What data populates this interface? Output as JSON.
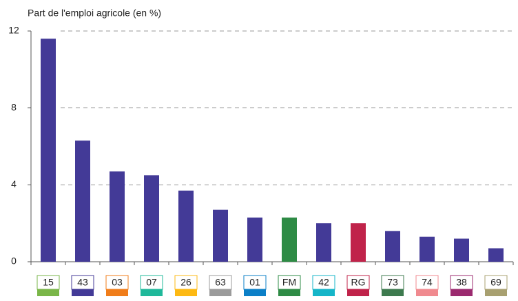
{
  "chart_data": {
    "type": "bar",
    "title": "Part de l'emploi agricole (en %)",
    "categories": [
      "15",
      "43",
      "03",
      "07",
      "26",
      "63",
      "01",
      "FM",
      "42",
      "RG",
      "73",
      "74",
      "38",
      "69"
    ],
    "values": [
      11.6,
      6.3,
      4.7,
      4.5,
      3.7,
      2.7,
      2.3,
      2.3,
      2.0,
      2.0,
      1.6,
      1.3,
      1.2,
      0.7
    ],
    "bar_colors": [
      "#433a97",
      "#433a97",
      "#433a97",
      "#433a97",
      "#433a97",
      "#433a97",
      "#433a97",
      "#2e8b45",
      "#433a97",
      "#c0234a",
      "#433a97",
      "#433a97",
      "#433a97",
      "#433a97"
    ],
    "label_colors": [
      "#7ab648",
      "#433a97",
      "#f07d1a",
      "#1fb89a",
      "#fdb913",
      "#9b9b9b",
      "#0b7fc7",
      "#2e8b45",
      "#15b5c8",
      "#c0234a",
      "#3d7a4e",
      "#f08a8f",
      "#9b2a6f",
      "#a8a070"
    ],
    "ylim": [
      0,
      12
    ],
    "yticks": [
      0,
      4,
      8,
      12
    ],
    "grid": true
  }
}
